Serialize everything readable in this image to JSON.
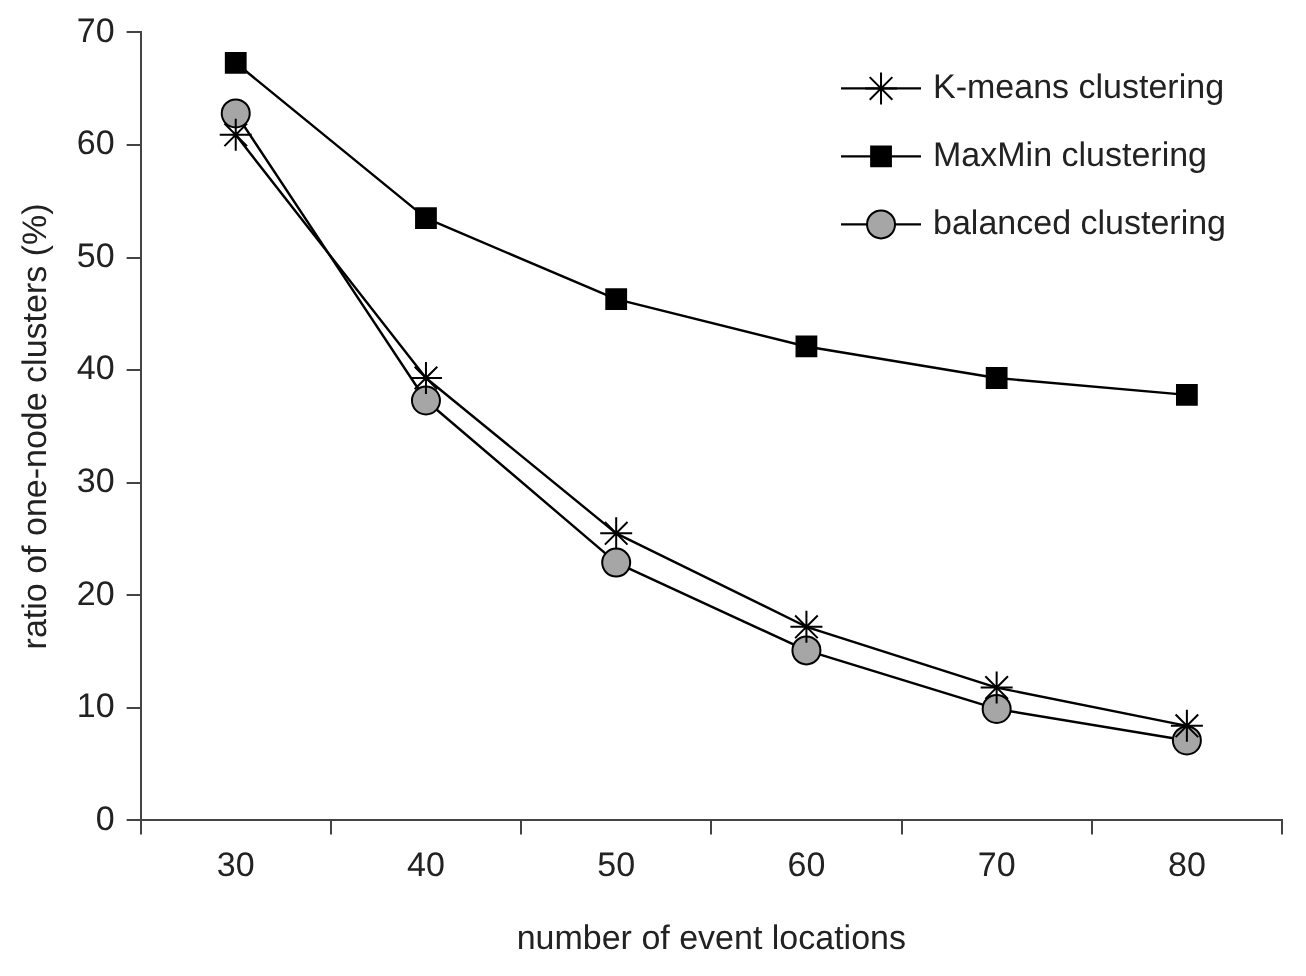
{
  "chart_data": {
    "type": "line",
    "xlabel": "number of event locations",
    "ylabel": "ratio of one-node clusters (%)",
    "categories": [
      "30",
      "40",
      "50",
      "60",
      "70",
      "80"
    ],
    "series": [
      {
        "name": "K-means clustering",
        "color": "#000000",
        "marker": "cross",
        "values": [
          60.9,
          39.3,
          25.5,
          17.2,
          11.8,
          8.4
        ]
      },
      {
        "name": "MaxMin clustering",
        "color": "#000000",
        "marker": "square",
        "values": [
          67.3,
          53.5,
          46.3,
          42.1,
          39.3,
          37.8
        ]
      },
      {
        "name": "balanced clustering",
        "color": "#a6a6a6",
        "marker": "circle",
        "values": [
          62.8,
          37.3,
          22.9,
          15.1,
          9.9,
          7.1
        ]
      }
    ],
    "ylim": [
      0,
      70
    ],
    "yticks": [
      0,
      10,
      20,
      30,
      40,
      50,
      60,
      70
    ],
    "grid": false,
    "legend": "top right",
    "line_style": "solid"
  }
}
